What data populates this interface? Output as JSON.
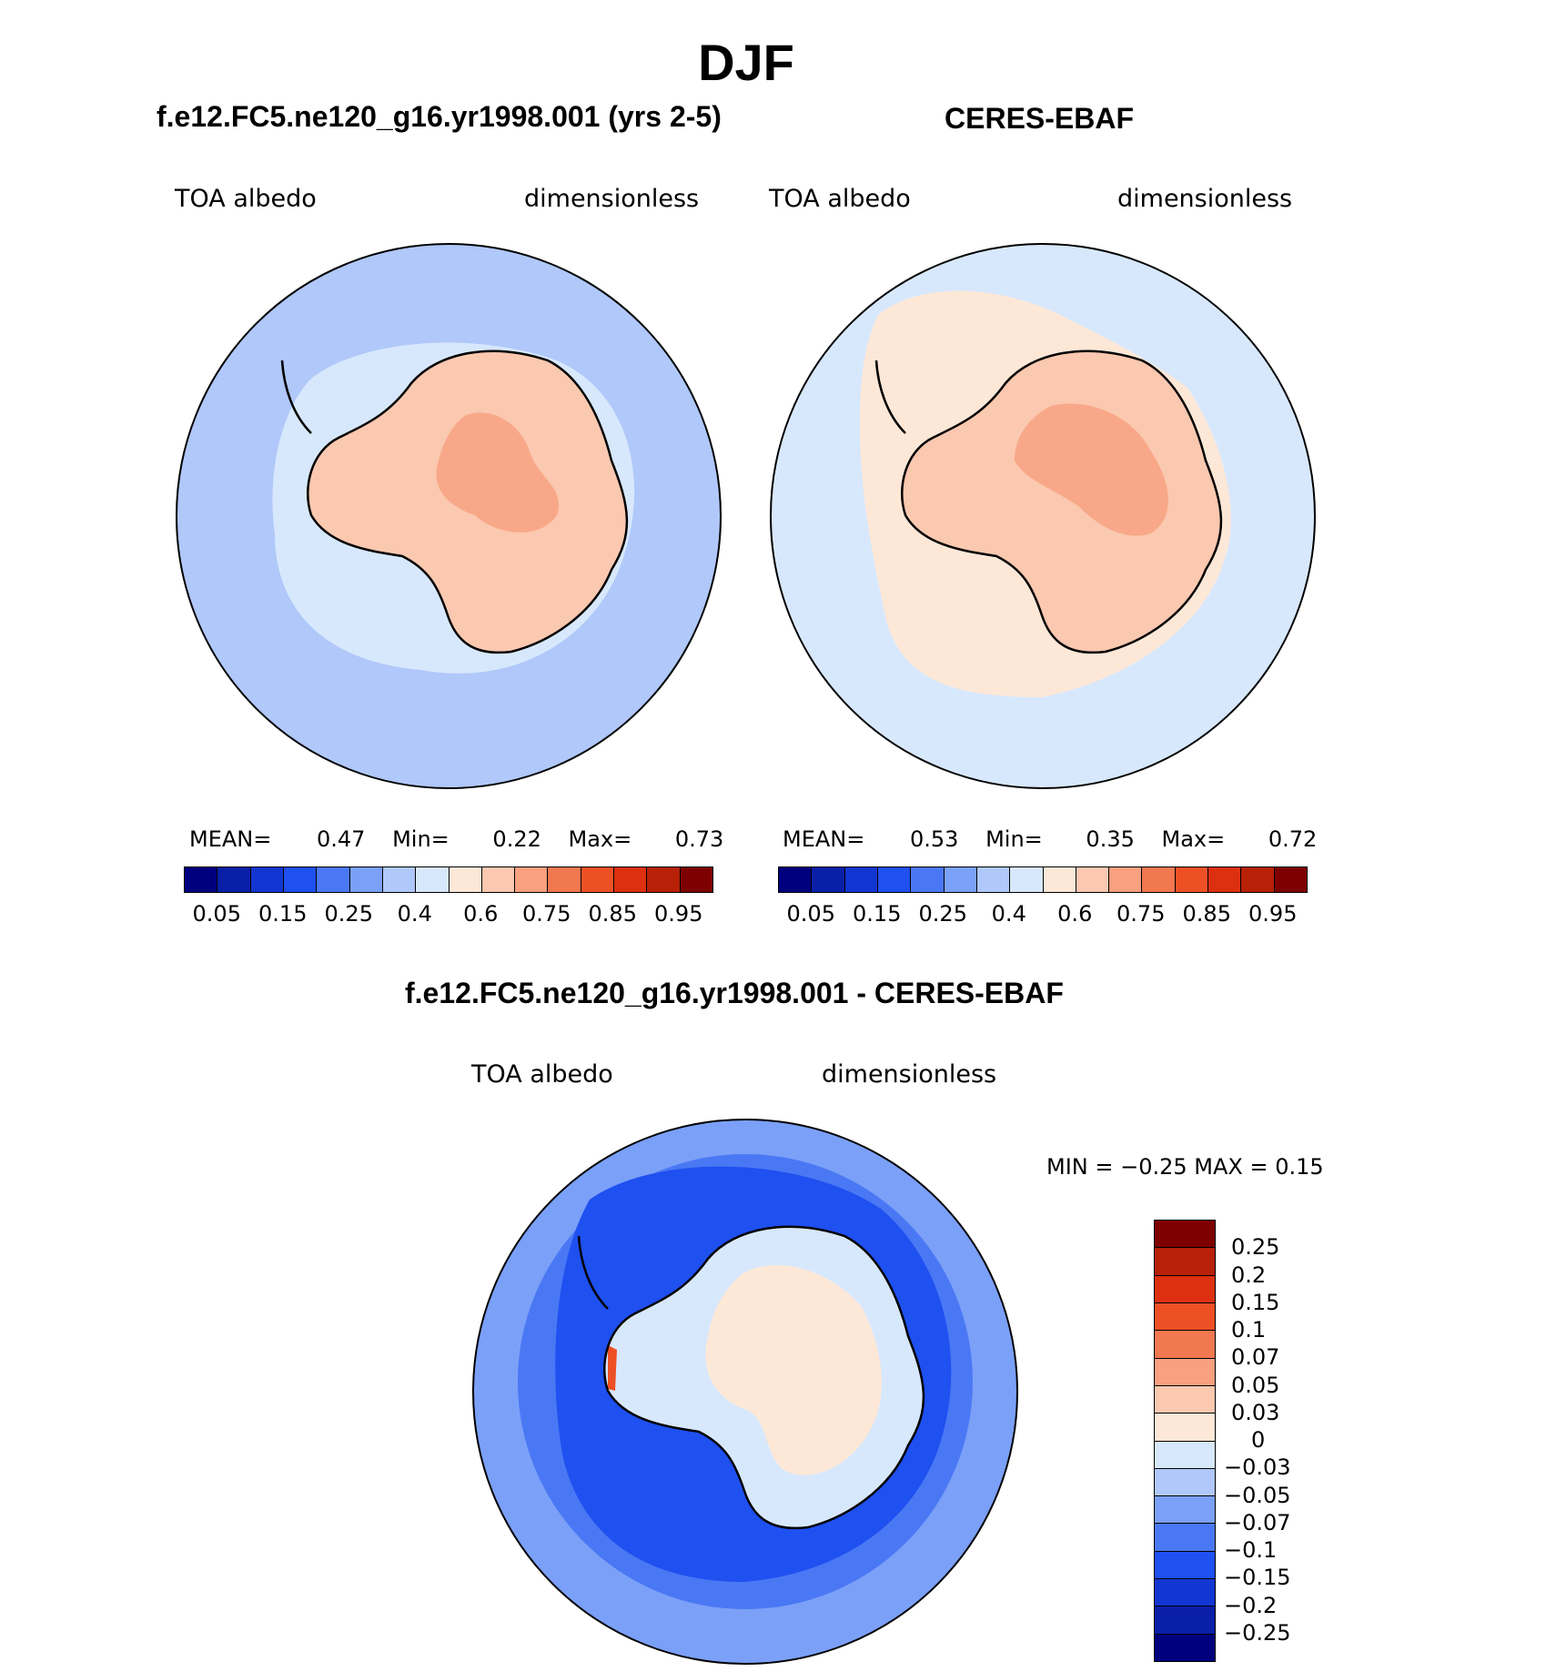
{
  "main_title": "DJF",
  "panels": {
    "model": {
      "title": "f.e12.FC5.ne120_g16.yr1998.001 (yrs 2-5)",
      "left_label": "TOA albedo",
      "right_label": "dimensionless",
      "stats": {
        "mean_label": "MEAN=",
        "mean": "0.47",
        "min_label": "Min=",
        "min": "0.22",
        "max_label": "Max=",
        "max": "0.73"
      }
    },
    "obs": {
      "title": "CERES-EBAF",
      "left_label": "TOA albedo",
      "right_label": "dimensionless",
      "stats": {
        "mean_label": "MEAN=",
        "mean": "0.53",
        "min_label": "Min=",
        "min": "0.35",
        "max_label": "Max=",
        "max": "0.72"
      }
    },
    "diff": {
      "title": "f.e12.FC5.ne120_g16.yr1998.001 - CERES-EBAF",
      "left_label": "TOA albedo",
      "right_label": "dimensionless",
      "minmax": "MIN =   −0.25 MAX =    0.15"
    }
  },
  "colorbar_main": {
    "colors": [
      "#00007f",
      "#0a1fa8",
      "#1236d2",
      "#1f50f0",
      "#4a78f4",
      "#7ba0f8",
      "#b0c8fa",
      "#d8e8fc",
      "#fde8d8",
      "#fbc8b0",
      "#f8a080",
      "#f27850",
      "#ee5026",
      "#dd3010",
      "#b82008",
      "#7f0000"
    ],
    "tick_labels": [
      "0.05",
      "0.15",
      "0.25",
      "0.4",
      "0.6",
      "0.75",
      "0.85",
      "0.95"
    ]
  },
  "colorbar_diff": {
    "colors": [
      "#7f0000",
      "#b82008",
      "#dd3010",
      "#ee5026",
      "#f27850",
      "#f8a080",
      "#fbc8b0",
      "#fde8d8",
      "#d8e8fc",
      "#b0c8fa",
      "#7ba0f8",
      "#4a78f4",
      "#1f50f0",
      "#1236d2",
      "#0a1fa8",
      "#00007f"
    ],
    "tick_labels": [
      "0.25",
      "0.2",
      "0.15",
      "0.1",
      "0.07",
      "0.05",
      "0.03",
      "0",
      "−0.03",
      "−0.05",
      "−0.07",
      "−0.1",
      "−0.15",
      "−0.2",
      "−0.25"
    ]
  },
  "map_colors": {
    "model_ocean": "#b0c8fa",
    "model_seaice": "#d8e8fc",
    "model_land": "#fbc8b0",
    "model_plateau": "#f8a888",
    "obs_ocean": "#d8e8fc",
    "obs_seaice": "#fde8d8",
    "obs_land": "#fbc8b0",
    "obs_plateau": "#f8a888",
    "diff_ocean": "#1f50f0",
    "diff_ring": "#4a78f4",
    "diff_outer": "#7ba0f8",
    "diff_land": "#d8e8fc",
    "diff_pos": "#fde8d8",
    "diff_red": "#ee5026"
  }
}
